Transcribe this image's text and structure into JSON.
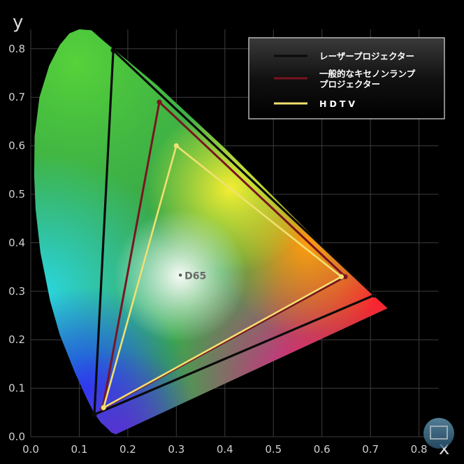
{
  "chart_data": {
    "type": "scatter",
    "title": "",
    "xlabel": "x",
    "ylabel": "y",
    "xlim": [
      0,
      0.85
    ],
    "ylim": [
      0,
      0.85
    ],
    "grid": true,
    "legend_position": "top-right",
    "x_ticks": [
      "0.0",
      "0.1",
      "0.2",
      "0.3",
      "0.4",
      "0.5",
      "0.6",
      "0.7",
      "0.8"
    ],
    "y_ticks": [
      "0.0",
      "0.1",
      "0.2",
      "0.3",
      "0.4",
      "0.5",
      "0.6",
      "0.7",
      "0.8"
    ],
    "series": [
      {
        "name": "レーザープロジェクター",
        "color": "#0a0a0a",
        "points": [
          [
            0.17,
            0.797
          ],
          [
            0.708,
            0.292
          ],
          [
            0.131,
            0.046
          ]
        ]
      },
      {
        "name_lines": [
          "一般的なキセノンランプ",
          "プロジェクター"
        ],
        "color": "#7a1420",
        "points": [
          [
            0.265,
            0.69
          ],
          [
            0.648,
            0.33
          ],
          [
            0.148,
            0.058
          ]
        ]
      },
      {
        "name": "HDTV",
        "color": "#f0e070",
        "points": [
          [
            0.3,
            0.6
          ],
          [
            0.64,
            0.33
          ],
          [
            0.15,
            0.06
          ]
        ]
      }
    ],
    "annotations": [
      {
        "text": "D65",
        "x": 0.3127,
        "y": 0.329
      }
    ]
  }
}
